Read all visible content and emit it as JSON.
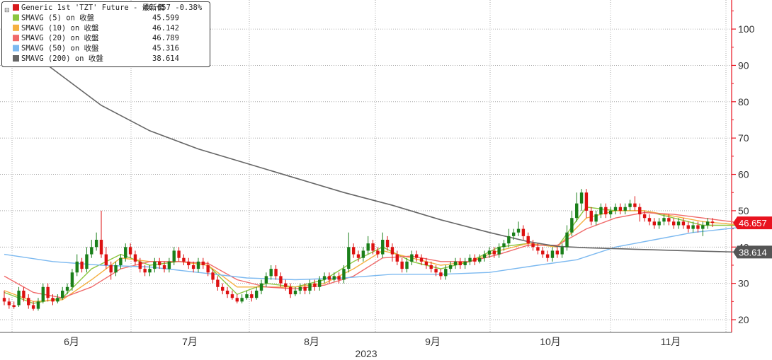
{
  "chart_data": {
    "type": "line",
    "xlabel": "2023",
    "x_ticks": [
      "6月",
      "7月",
      "8月",
      "9月",
      "10月",
      "11月"
    ],
    "y_ticks": [
      20,
      30,
      40,
      50,
      60,
      70,
      80,
      90,
      100
    ],
    "ylim": [
      16.5,
      108
    ],
    "grid": true,
    "legend_position": "top-left",
    "price_badges": [
      {
        "value": "46.657",
        "color": "#e8131f"
      },
      {
        "value": "38.614",
        "color": "#555555"
      }
    ],
    "legend": [
      {
        "name": "Generic 1st 'TZT' Future - 最新價",
        "value": "46.657  -0.38%",
        "color": "#d7191c"
      },
      {
        "name": "SMAVG (5)  on 收盤",
        "value": "45.599",
        "color": "#8cc63f"
      },
      {
        "name": "SMAVG (10)  on 收盤",
        "value": "46.142",
        "color": "#f5b041"
      },
      {
        "name": "SMAVG (20)  on 收盤",
        "value": "46.789",
        "color": "#f06a6a"
      },
      {
        "name": "SMAVG (50)  on 收盤",
        "value": "45.316",
        "color": "#7cb9f0"
      },
      {
        "name": "SMAVG (200)  on 收盤",
        "value": "38.614",
        "color": "#666666"
      }
    ],
    "candles": [
      [
        26,
        25,
        28,
        24
      ],
      [
        25,
        24,
        26,
        23
      ],
      [
        24,
        23.5,
        25,
        23
      ],
      [
        24,
        28,
        29,
        23.5
      ],
      [
        28,
        26,
        29,
        25
      ],
      [
        26,
        24,
        27,
        23
      ],
      [
        24,
        23,
        25,
        22.5
      ],
      [
        23,
        25,
        26,
        22.5
      ],
      [
        25,
        29,
        30,
        24.5
      ],
      [
        29,
        26,
        30,
        25
      ],
      [
        26,
        25,
        27,
        24
      ],
      [
        25,
        26,
        27,
        24.5
      ],
      [
        26,
        28,
        29,
        25.5
      ],
      [
        28,
        29,
        30,
        27
      ],
      [
        29,
        33,
        34,
        28
      ],
      [
        33,
        36,
        38,
        32
      ],
      [
        36,
        34,
        37,
        33
      ],
      [
        34,
        38,
        40,
        33
      ],
      [
        38,
        40,
        42,
        37
      ],
      [
        40,
        42,
        44,
        39
      ],
      [
        42,
        38,
        50,
        37
      ],
      [
        38,
        35,
        40,
        34
      ],
      [
        35,
        33,
        36,
        31
      ],
      [
        33,
        35,
        36,
        32
      ],
      [
        35,
        37,
        38,
        34
      ],
      [
        37,
        40,
        41,
        36
      ],
      [
        40,
        38,
        41,
        37
      ],
      [
        38,
        36,
        39,
        35
      ],
      [
        36,
        34,
        37,
        33
      ],
      [
        34,
        33,
        35,
        32
      ],
      [
        33,
        34,
        35,
        32
      ],
      [
        34,
        36,
        37,
        33
      ],
      [
        36,
        35,
        37,
        34
      ],
      [
        35,
        34,
        36,
        33
      ],
      [
        34,
        36,
        37,
        33
      ],
      [
        36,
        39,
        40,
        35
      ],
      [
        39,
        37,
        40,
        36
      ],
      [
        37,
        36,
        38,
        35
      ],
      [
        36,
        35,
        37,
        34
      ],
      [
        35,
        34,
        36,
        33
      ],
      [
        34,
        36,
        37,
        33
      ],
      [
        36,
        35,
        37,
        34
      ],
      [
        35,
        33,
        36,
        32
      ],
      [
        33,
        31,
        34,
        30
      ],
      [
        31,
        29,
        32,
        28
      ],
      [
        29,
        28,
        30,
        27
      ],
      [
        28,
        27,
        29,
        26
      ],
      [
        27,
        26,
        28,
        25.5
      ],
      [
        26,
        25,
        27,
        24.5
      ],
      [
        25,
        26,
        27,
        24.5
      ],
      [
        26,
        27,
        28,
        25.5
      ],
      [
        27,
        26,
        28,
        25
      ],
      [
        26,
        28,
        29,
        25.5
      ],
      [
        28,
        30,
        31,
        27
      ],
      [
        30,
        32,
        33,
        29
      ],
      [
        32,
        34,
        35,
        31
      ],
      [
        34,
        32,
        35,
        31
      ],
      [
        32,
        30,
        33,
        29
      ],
      [
        30,
        29,
        31,
        28
      ],
      [
        29,
        27,
        30,
        26
      ],
      [
        27,
        28,
        29,
        26.5
      ],
      [
        28,
        29,
        30,
        27
      ],
      [
        29,
        28,
        30,
        27
      ],
      [
        28,
        30,
        31,
        27
      ],
      [
        30,
        29,
        31,
        28
      ],
      [
        29,
        31,
        32,
        28
      ],
      [
        31,
        32,
        33,
        30
      ],
      [
        32,
        31,
        33,
        30
      ],
      [
        31,
        32,
        33,
        30.5
      ],
      [
        32,
        31,
        33,
        30
      ],
      [
        31,
        34,
        35,
        30
      ],
      [
        34,
        40,
        44,
        33
      ],
      [
        40,
        38,
        41,
        37
      ],
      [
        38,
        37,
        39,
        36
      ],
      [
        37,
        39,
        40,
        36
      ],
      [
        39,
        41,
        43,
        38
      ],
      [
        41,
        39,
        42,
        38
      ],
      [
        39,
        38,
        40,
        37
      ],
      [
        38,
        42,
        44,
        37
      ],
      [
        42,
        40,
        43,
        39
      ],
      [
        40,
        38,
        41,
        36
      ],
      [
        38,
        36,
        39,
        35
      ],
      [
        36,
        34,
        37,
        33
      ],
      [
        34,
        36,
        37,
        33
      ],
      [
        36,
        38,
        39,
        35
      ],
      [
        38,
        37,
        39,
        36
      ],
      [
        37,
        36,
        38,
        35
      ],
      [
        36,
        35,
        37,
        34
      ],
      [
        35,
        34,
        36,
        33
      ],
      [
        34,
        33,
        35,
        32
      ],
      [
        33,
        32,
        34,
        31
      ],
      [
        32,
        34,
        35,
        31
      ],
      [
        34,
        35,
        36,
        33
      ],
      [
        35,
        36,
        37,
        34
      ],
      [
        36,
        35,
        37,
        34
      ],
      [
        35,
        36,
        37,
        34
      ],
      [
        36,
        37,
        38,
        35
      ],
      [
        37,
        36,
        38,
        35
      ],
      [
        36,
        37,
        38,
        35.5
      ],
      [
        37,
        38,
        39,
        36
      ],
      [
        38,
        39,
        40,
        37
      ],
      [
        39,
        38,
        40,
        37
      ],
      [
        38,
        40,
        41,
        37
      ],
      [
        40,
        41,
        42,
        39
      ],
      [
        41,
        43,
        45,
        40
      ],
      [
        43,
        44,
        45,
        42
      ],
      [
        44,
        45,
        47,
        43
      ],
      [
        45,
        43,
        46,
        42
      ],
      [
        43,
        41,
        44,
        40
      ],
      [
        41,
        40,
        42,
        39
      ],
      [
        40,
        39,
        41,
        38
      ],
      [
        39,
        38,
        40,
        37
      ],
      [
        38,
        37,
        39,
        36
      ],
      [
        37,
        39,
        40,
        36
      ],
      [
        39,
        38,
        40,
        37
      ],
      [
        38,
        40,
        41,
        37
      ],
      [
        40,
        44,
        46,
        39
      ],
      [
        44,
        48,
        50,
        43
      ],
      [
        48,
        52,
        55,
        47
      ],
      [
        52,
        55,
        56,
        50
      ],
      [
        55,
        50,
        56,
        48
      ],
      [
        50,
        47,
        51,
        46
      ],
      [
        47,
        49,
        50,
        46
      ],
      [
        49,
        51,
        52,
        48
      ],
      [
        51,
        49,
        52,
        48
      ],
      [
        49,
        50,
        51,
        48
      ],
      [
        50,
        51,
        52,
        49
      ],
      [
        51,
        50,
        52,
        49
      ],
      [
        50,
        51,
        52,
        49
      ],
      [
        51,
        52,
        53,
        50
      ],
      [
        52,
        51,
        54,
        50
      ],
      [
        51,
        49,
        52,
        47
      ],
      [
        49,
        48,
        50,
        47
      ],
      [
        48,
        47,
        49,
        46
      ],
      [
        47,
        46,
        48,
        45
      ],
      [
        46,
        47,
        48,
        45
      ],
      [
        47,
        48,
        49,
        46
      ],
      [
        48,
        47,
        49,
        46
      ],
      [
        47,
        46,
        48,
        45
      ],
      [
        46,
        47,
        48,
        45
      ],
      [
        47,
        46,
        48,
        45
      ],
      [
        46,
        45,
        47,
        44
      ],
      [
        45,
        46,
        47,
        44
      ],
      [
        46,
        45,
        47,
        44
      ],
      [
        45,
        46,
        47,
        43
      ],
      [
        46,
        47,
        48,
        45
      ],
      [
        47,
        46.657,
        48,
        45.5
      ]
    ],
    "series": [
      {
        "name": "SMAVG (5)  on 收盤",
        "color": "#8cc63f",
        "values": [
          [
            0,
            27.5
          ],
          [
            6,
            24.5
          ],
          [
            12,
            26
          ],
          [
            18,
            34
          ],
          [
            24,
            38
          ],
          [
            30,
            35
          ],
          [
            36,
            36
          ],
          [
            42,
            35
          ],
          [
            48,
            27
          ],
          [
            54,
            30
          ],
          [
            60,
            29
          ],
          [
            66,
            31
          ],
          [
            72,
            36
          ],
          [
            78,
            40
          ],
          [
            84,
            36
          ],
          [
            90,
            34
          ],
          [
            96,
            36
          ],
          [
            102,
            40
          ],
          [
            108,
            41
          ],
          [
            114,
            40
          ],
          [
            120,
            51
          ],
          [
            126,
            50
          ],
          [
            132,
            50
          ],
          [
            138,
            48
          ],
          [
            144,
            46
          ],
          [
            151,
            46
          ]
        ]
      },
      {
        "name": "SMAVG (10)  on 收盤",
        "color": "#f5b041",
        "values": [
          [
            0,
            28
          ],
          [
            6,
            25
          ],
          [
            12,
            25.5
          ],
          [
            18,
            31
          ],
          [
            24,
            37
          ],
          [
            30,
            36
          ],
          [
            36,
            36
          ],
          [
            42,
            35
          ],
          [
            48,
            29
          ],
          [
            54,
            29
          ],
          [
            60,
            29
          ],
          [
            66,
            30
          ],
          [
            72,
            34
          ],
          [
            78,
            39
          ],
          [
            84,
            37
          ],
          [
            90,
            35
          ],
          [
            96,
            36
          ],
          [
            102,
            39
          ],
          [
            108,
            41
          ],
          [
            114,
            40
          ],
          [
            120,
            48
          ],
          [
            126,
            50
          ],
          [
            132,
            50
          ],
          [
            138,
            48.5
          ],
          [
            144,
            47
          ],
          [
            151,
            46.142
          ]
        ]
      },
      {
        "name": "SMAVG (20)  on 收盤",
        "color": "#f06a6a",
        "values": [
          [
            0,
            32
          ],
          [
            6,
            27.5
          ],
          [
            12,
            26
          ],
          [
            18,
            29
          ],
          [
            24,
            34
          ],
          [
            30,
            36
          ],
          [
            36,
            36
          ],
          [
            42,
            35.5
          ],
          [
            48,
            31
          ],
          [
            54,
            29
          ],
          [
            60,
            28.5
          ],
          [
            66,
            29.5
          ],
          [
            72,
            32
          ],
          [
            78,
            37
          ],
          [
            84,
            37.5
          ],
          [
            90,
            36
          ],
          [
            96,
            36
          ],
          [
            102,
            38
          ],
          [
            108,
            40.5
          ],
          [
            114,
            40.5
          ],
          [
            120,
            45
          ],
          [
            126,
            48
          ],
          [
            132,
            49.5
          ],
          [
            138,
            49
          ],
          [
            144,
            48
          ],
          [
            151,
            46.789
          ]
        ]
      },
      {
        "name": "SMAVG (50)  on 收盤",
        "color": "#7cb9f0",
        "values": [
          [
            0,
            38
          ],
          [
            10,
            36
          ],
          [
            20,
            35
          ],
          [
            30,
            34.5
          ],
          [
            40,
            33
          ],
          [
            50,
            31.5
          ],
          [
            60,
            31
          ],
          [
            70,
            31.5
          ],
          [
            80,
            32.5
          ],
          [
            90,
            32.5
          ],
          [
            100,
            33
          ],
          [
            110,
            35
          ],
          [
            118,
            36.5
          ],
          [
            126,
            40
          ],
          [
            134,
            42
          ],
          [
            142,
            44
          ],
          [
            151,
            45.316
          ]
        ]
      },
      {
        "name": "SMAVG (200)  on 收盤",
        "color": "#666666",
        "values": [
          [
            0,
            99
          ],
          [
            10,
            89
          ],
          [
            20,
            79
          ],
          [
            30,
            72
          ],
          [
            40,
            67
          ],
          [
            50,
            63
          ],
          [
            60,
            59
          ],
          [
            70,
            55
          ],
          [
            80,
            51.5
          ],
          [
            90,
            47.5
          ],
          [
            100,
            44
          ],
          [
            108,
            41.5
          ],
          [
            114,
            40.2
          ],
          [
            120,
            39.8
          ],
          [
            130,
            39.4
          ],
          [
            140,
            39
          ],
          [
            151,
            38.614
          ]
        ]
      }
    ]
  }
}
